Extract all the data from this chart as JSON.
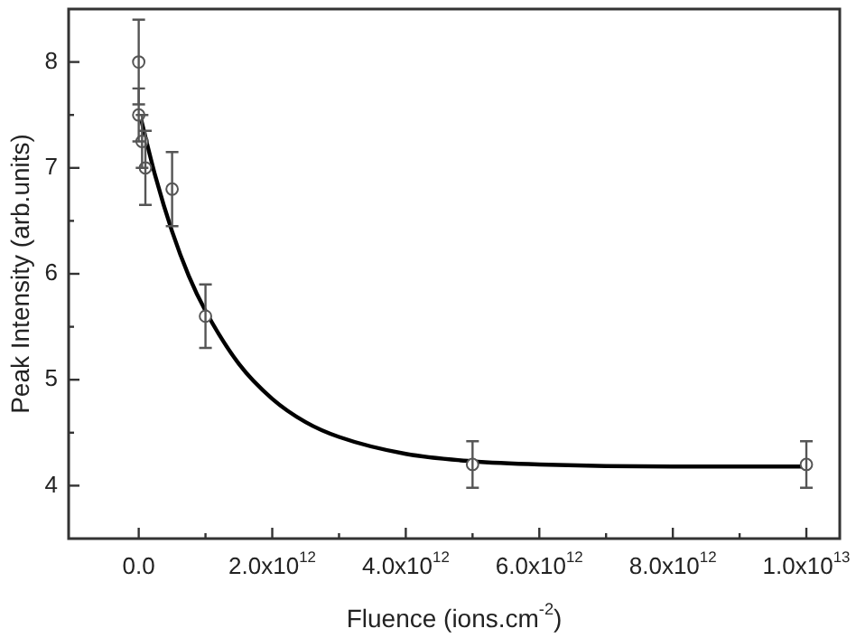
{
  "chart_data": {
    "type": "scatter",
    "xlabel": "Fluence (ions.cm$^{-2}$)",
    "ylabel": "Peak Intensity (arb.units)",
    "xlim": [
      -1050000000000.0,
      10500000000000.0
    ],
    "ylim": [
      3.5,
      8.5
    ],
    "xticks": [
      {
        "value": 0,
        "label": "0.0"
      },
      {
        "value": 1000000000000.0,
        "label": null
      },
      {
        "value": 2000000000000.0,
        "label": "2.0x10$^{12}$"
      },
      {
        "value": 3000000000000.0,
        "label": null
      },
      {
        "value": 4000000000000.0,
        "label": "4.0x10$^{12}$"
      },
      {
        "value": 5000000000000.0,
        "label": null
      },
      {
        "value": 6000000000000.0,
        "label": "6.0x10$^{12}$"
      },
      {
        "value": 7000000000000.0,
        "label": null
      },
      {
        "value": 8000000000000.0,
        "label": "8.0x10$^{12}$"
      },
      {
        "value": 9000000000000.0,
        "label": null
      },
      {
        "value": 10000000000000.0,
        "label": "1.0x10$^{13}$"
      }
    ],
    "yticks": [
      4,
      {
        "value": 4.5,
        "label": null
      },
      5,
      {
        "value": 5.5,
        "label": null
      },
      6,
      {
        "value": 6.5,
        "label": null
      },
      7,
      {
        "value": 7.5,
        "label": null
      },
      8
    ],
    "grid": false,
    "legend": false,
    "marker": "circle",
    "series": [
      {
        "type": "scatter",
        "color": "#555555",
        "x": [
          0,
          0,
          50000000000.0,
          100000000000.0,
          500000000000.0,
          1000000000000.0,
          5000000000000.0,
          10000000000000.0
        ],
        "values": [
          8.0,
          7.5,
          7.25,
          7.0,
          6.8,
          5.6,
          4.2,
          4.2
        ],
        "errors": [
          0.4,
          0.25,
          0.25,
          0.35,
          0.35,
          0.3,
          0.22,
          0.22
        ]
      },
      {
        "type": "line",
        "color": "#000000",
        "marker": "none",
        "line_style": "solid",
        "x": [
          0,
          250000000000.0,
          500000000000.0,
          750000000000.0,
          1000000000000.0,
          1500000000000.0,
          2000000000000.0,
          2500000000000.0,
          3000000000000.0,
          4000000000000.0,
          5000000000000.0,
          6000000000000.0,
          8000000000000.0,
          10000000000000.0
        ],
        "values": [
          7.55,
          6.92,
          6.4,
          5.98,
          5.65,
          5.15,
          4.82,
          4.6,
          4.46,
          4.3,
          4.23,
          4.2,
          4.18,
          4.18
        ]
      }
    ]
  }
}
